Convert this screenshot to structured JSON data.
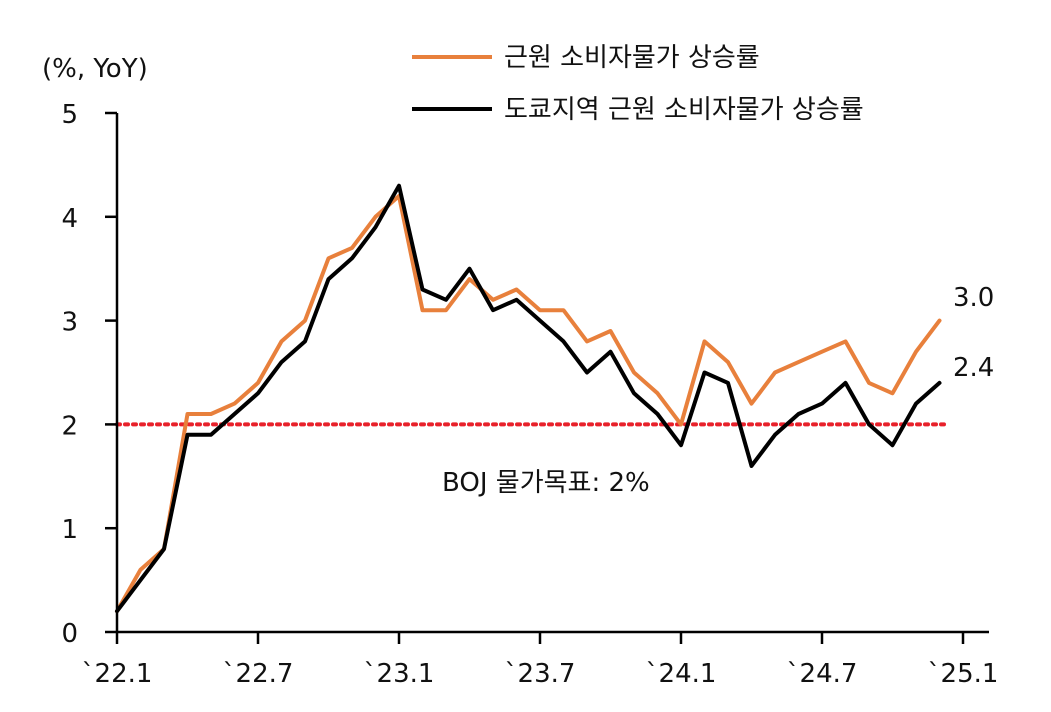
{
  "chart_data": {
    "type": "line",
    "unit_label": "(%, YoY)",
    "title": "",
    "xlabel": "",
    "ylabel": "",
    "ylim": [
      0,
      5
    ],
    "yticks": [
      0,
      1,
      2,
      3,
      4,
      5
    ],
    "x_tick_labels": [
      "`22.1",
      "`22.7",
      "`23.1",
      "`23.7",
      "`24.1",
      "`24.7",
      "`25.1"
    ],
    "x_tick_index": [
      0,
      6,
      12,
      18,
      24,
      30,
      36
    ],
    "x": [
      "2022-01",
      "2022-02",
      "2022-03",
      "2022-04",
      "2022-05",
      "2022-06",
      "2022-07",
      "2022-08",
      "2022-09",
      "2022-10",
      "2022-11",
      "2022-12",
      "2023-01",
      "2023-02",
      "2023-03",
      "2023-04",
      "2023-05",
      "2023-06",
      "2023-07",
      "2023-08",
      "2023-09",
      "2023-10",
      "2023-11",
      "2023-12",
      "2024-01",
      "2024-02",
      "2024-03",
      "2024-04",
      "2024-05",
      "2024-06",
      "2024-07",
      "2024-08",
      "2024-09",
      "2024-10",
      "2024-11",
      "2024-12",
      "2025-01"
    ],
    "legend_position": "top-right",
    "grid": false,
    "series": [
      {
        "name": "근원 소비자물가 상승률",
        "color": "#E8803C",
        "values": [
          0.2,
          0.6,
          0.8,
          2.1,
          2.1,
          2.2,
          2.4,
          2.8,
          3.0,
          3.6,
          3.7,
          4.0,
          4.2,
          3.1,
          3.1,
          3.4,
          3.2,
          3.3,
          3.1,
          3.1,
          2.8,
          2.9,
          2.5,
          2.3,
          2.0,
          2.8,
          2.6,
          2.2,
          2.5,
          2.6,
          2.7,
          2.8,
          2.4,
          2.3,
          2.7,
          3.0,
          null
        ],
        "end_label": "3.0"
      },
      {
        "name": "도쿄지역 근원 소비자물가 상승률",
        "color": "#000000",
        "values": [
          0.2,
          0.5,
          0.8,
          1.9,
          1.9,
          2.1,
          2.3,
          2.6,
          2.8,
          3.4,
          3.6,
          3.9,
          4.3,
          3.3,
          3.2,
          3.5,
          3.1,
          3.2,
          3.0,
          2.8,
          2.5,
          2.7,
          2.3,
          2.1,
          1.8,
          2.5,
          2.4,
          1.6,
          1.9,
          2.1,
          2.2,
          2.4,
          2.0,
          1.8,
          2.2,
          2.4,
          null
        ],
        "end_label": "2.4"
      }
    ],
    "reference_line": {
      "value": 2,
      "label": "BOJ 물가목표: 2%",
      "color": "#E8202A",
      "style": "dotted"
    }
  }
}
